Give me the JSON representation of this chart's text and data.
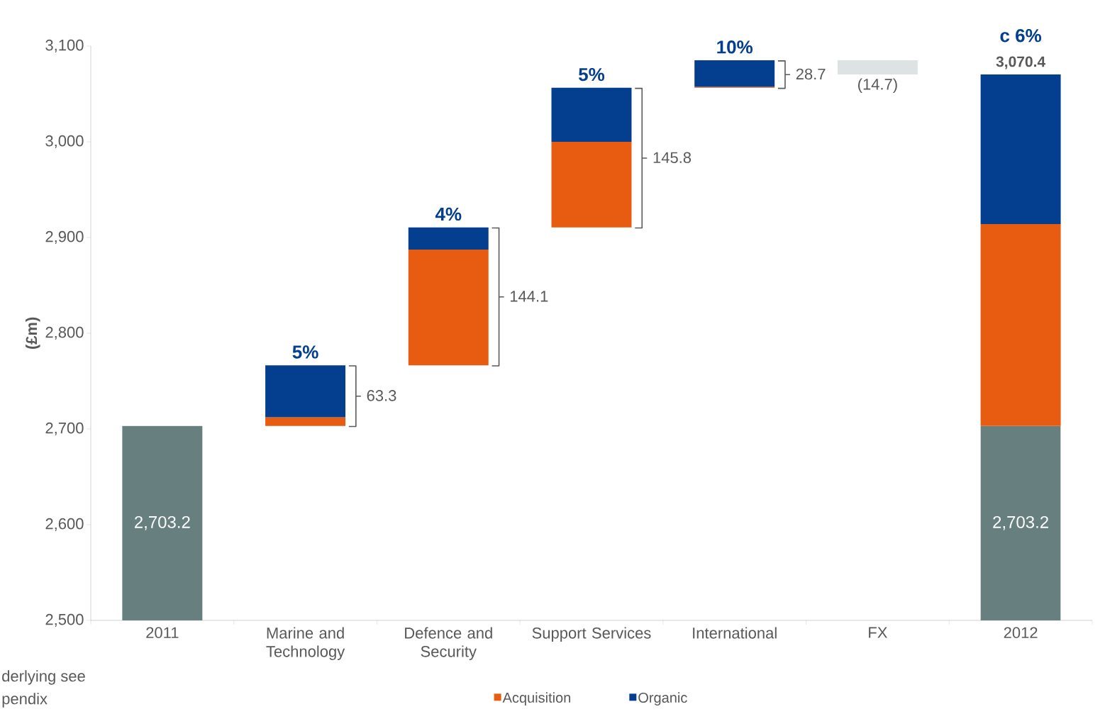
{
  "chart_data": {
    "type": "bar",
    "ylabel": "(£m)",
    "categories": [
      "2011",
      "Marine and Technology",
      "Defence and Security",
      "Support Services",
      "International",
      "FX",
      "2012"
    ],
    "series": [
      {
        "color": "#677f7e",
        "values": [
          2703.2,
          null,
          null,
          null,
          null,
          null,
          2703.2
        ],
        "value_labels": [
          "2,703.2",
          null,
          null,
          null,
          null,
          null,
          "2,703.2"
        ]
      },
      {
        "name": "Acquisition",
        "color": "#e85c12",
        "base": [
          null,
          2703.2,
          2766.5,
          2910.6,
          3056.4,
          null,
          2703.2
        ],
        "values": [
          null,
          9,
          120.9,
          89.4,
          1,
          null,
          210.9
        ]
      },
      {
        "name": "Organic",
        "color": "#033f8e",
        "base": [
          null,
          2712.2,
          2887.4,
          3000,
          3057.4,
          null,
          2914.1
        ],
        "values": [
          null,
          54.3,
          23.2,
          56.4,
          27.7,
          null,
          156.3
        ]
      },
      {
        "color": "#dde3e3",
        "base": [
          null,
          null,
          null,
          null,
          null,
          3085.1,
          null
        ],
        "values": [
          null,
          null,
          null,
          null,
          null,
          -14.7,
          null
        ],
        "value_labels": [
          null,
          null,
          null,
          null,
          null,
          "(14.7)",
          null
        ]
      }
    ],
    "ylim": [
      2500,
      3100
    ],
    "yticks": [
      {
        "value": 2500,
        "label": "2,500"
      },
      {
        "value": 2600,
        "label": "2,600"
      },
      {
        "value": 2700,
        "label": "2,700"
      },
      {
        "value": 2800,
        "label": "2,800"
      },
      {
        "value": 2900,
        "label": "2,900"
      },
      {
        "value": 3000,
        "label": "3,000"
      },
      {
        "value": 3100,
        "label": "3,100"
      }
    ],
    "legend": "bottom",
    "annotations": [
      {
        "text": "5%",
        "x": "Marine and Technology",
        "y": 2766.5
      },
      {
        "text": "4%",
        "x": "Defence and Security",
        "y": 2910.6
      },
      {
        "text": "5%",
        "x": "Support Services",
        "y": 3056.4
      },
      {
        "text": "10%",
        "x": "International",
        "y": 3085.1
      },
      "63.3",
      "144.1",
      "145.8",
      "28.7",
      {
        "text": "3,070.4",
        "x": "2012",
        "y": 3070.4
      },
      {
        "text": "c 6%",
        "x": "2012",
        "y": 3070.4
      },
      "derlying see",
      "pendix"
    ]
  }
}
